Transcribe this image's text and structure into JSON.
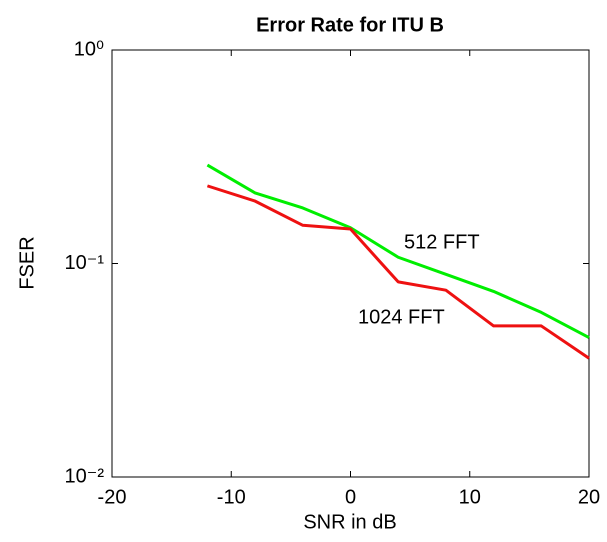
{
  "chart_data": {
    "type": "line",
    "title": "Error Rate for ITU B",
    "x_label": "SNR in dB",
    "y_label": "FSER",
    "x": [
      -12,
      -8,
      -4,
      0,
      4,
      8,
      12,
      16,
      20
    ],
    "series": [
      {
        "name": "512 FFT",
        "color": "#00ee00",
        "values": [
          0.289,
          0.214,
          0.182,
          0.147,
          0.107,
          0.089,
          0.074,
          0.059,
          0.045
        ]
      },
      {
        "name": "1024 FFT",
        "color": "#ee1111",
        "values": [
          0.231,
          0.196,
          0.151,
          0.145,
          0.082,
          0.075,
          0.051,
          0.051,
          0.036
        ]
      }
    ],
    "xlim": [
      -20,
      20
    ],
    "xticks": [
      -20,
      -10,
      0,
      10,
      20
    ],
    "ylim": [
      0.01,
      1
    ],
    "yticks": [
      {
        "value": 0.01,
        "label": "10⁻²"
      },
      {
        "value": 0.1,
        "label": "10⁻¹"
      },
      {
        "value": 1,
        "label": "10⁰"
      }
    ],
    "y_log": true,
    "grid": false
  }
}
